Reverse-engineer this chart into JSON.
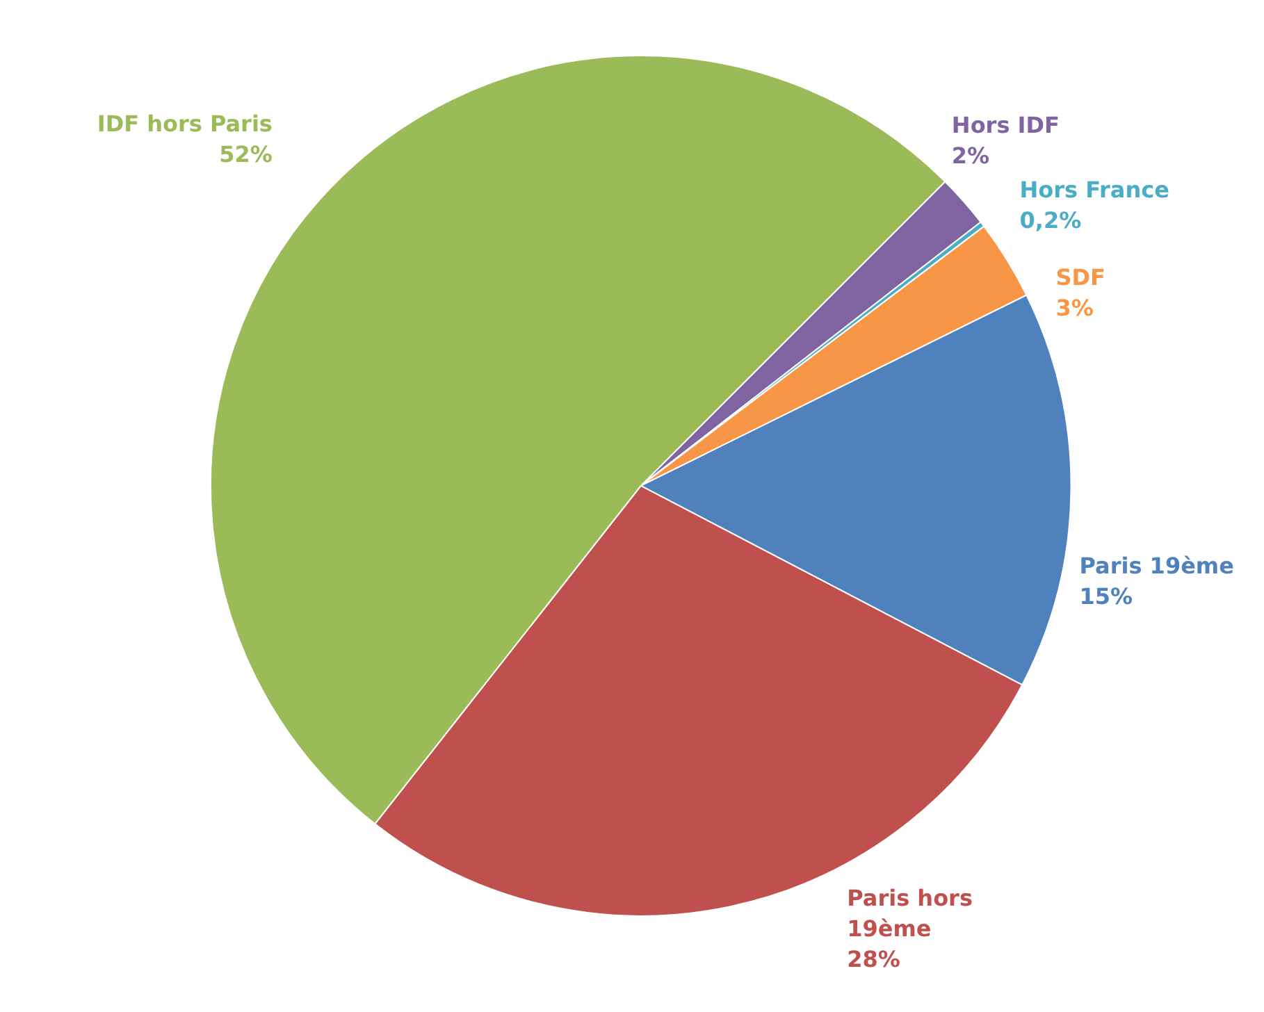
{
  "chart_data": {
    "type": "pie",
    "categories": [
      "Hors IDF",
      "Hors France",
      "SDF",
      "Paris 19ème",
      "Paris hors 19ème",
      "IDF hors Paris"
    ],
    "values": [
      2,
      0.2,
      3,
      15,
      28,
      52
    ],
    "value_labels": [
      "2%",
      "0,2%",
      "3%",
      "15%",
      "28%",
      "52%"
    ],
    "colors": [
      "#8064a2",
      "#4bacc6",
      "#f79646",
      "#4f81bd",
      "#c0504d",
      "#9bbb59"
    ],
    "legend": false
  }
}
